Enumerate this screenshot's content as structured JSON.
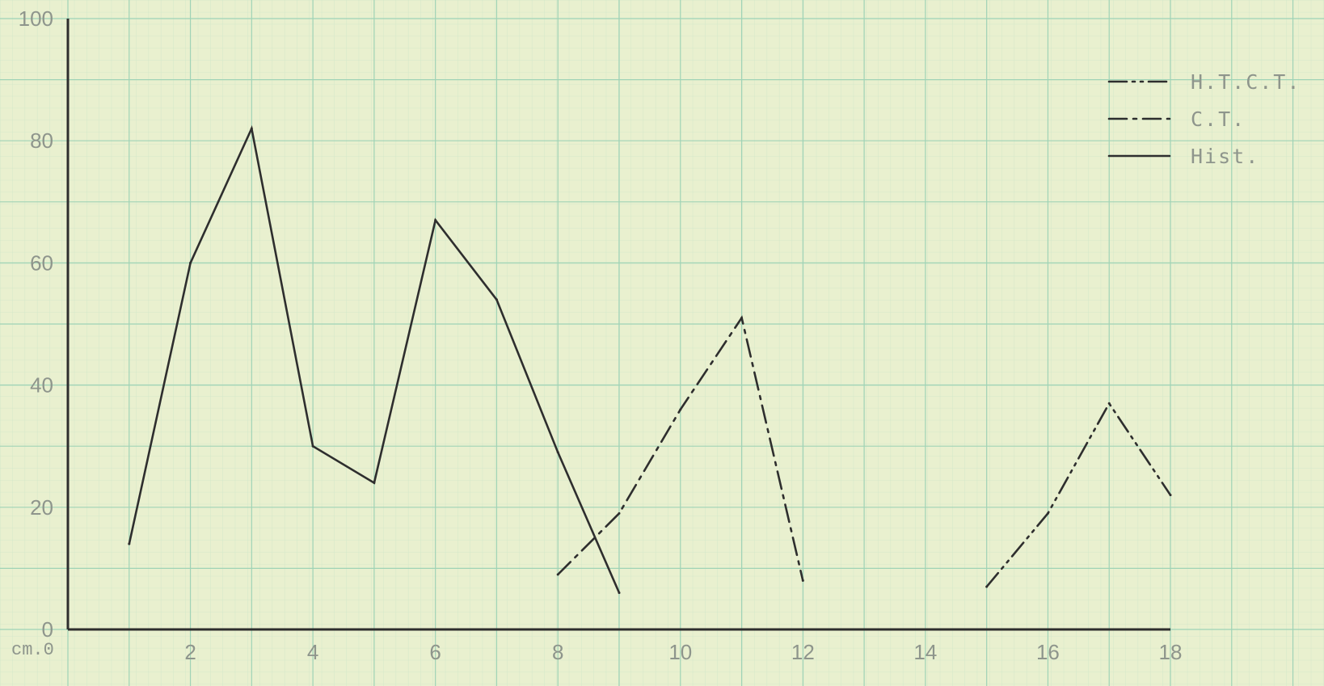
{
  "chart_data": {
    "type": "line",
    "title": "",
    "xlabel": "",
    "ylabel": "",
    "xlim": [
      0,
      18
    ],
    "ylim": [
      0,
      100
    ],
    "grid": true,
    "legend_position": "top-right",
    "origin_label": "cm.0",
    "x_ticks": [
      "2",
      "4",
      "6",
      "8",
      "10",
      "12",
      "14",
      "16",
      "18"
    ],
    "y_ticks": [
      "0",
      "20",
      "40",
      "60",
      "80",
      "100"
    ],
    "series": [
      {
        "name": "H.T.C.T.",
        "style": "dash-dot-dot",
        "color": "#2e2e2e",
        "points": [
          [
            15,
            7
          ],
          [
            16,
            19
          ],
          [
            17,
            37
          ],
          [
            18,
            22
          ]
        ]
      },
      {
        "name": "C.T.",
        "style": "dash-dot",
        "color": "#2e2e2e",
        "points": [
          [
            8,
            9
          ],
          [
            9,
            19
          ],
          [
            10,
            36
          ],
          [
            11,
            51
          ],
          [
            12,
            8
          ]
        ]
      },
      {
        "name": "Hist.",
        "style": "solid",
        "color": "#2e2e2e",
        "points": [
          [
            1,
            14
          ],
          [
            2,
            60
          ],
          [
            3,
            82
          ],
          [
            4,
            30
          ],
          [
            5,
            24
          ],
          [
            6,
            67
          ],
          [
            7,
            54
          ],
          [
            8,
            29
          ],
          [
            9,
            6
          ]
        ]
      }
    ]
  },
  "colors": {
    "paper": "#e9f0cf",
    "grid_minor": "#c9e3c3",
    "grid_major": "#9fd3b6",
    "axis": "#2e2e2e",
    "label": "#8e958c"
  }
}
